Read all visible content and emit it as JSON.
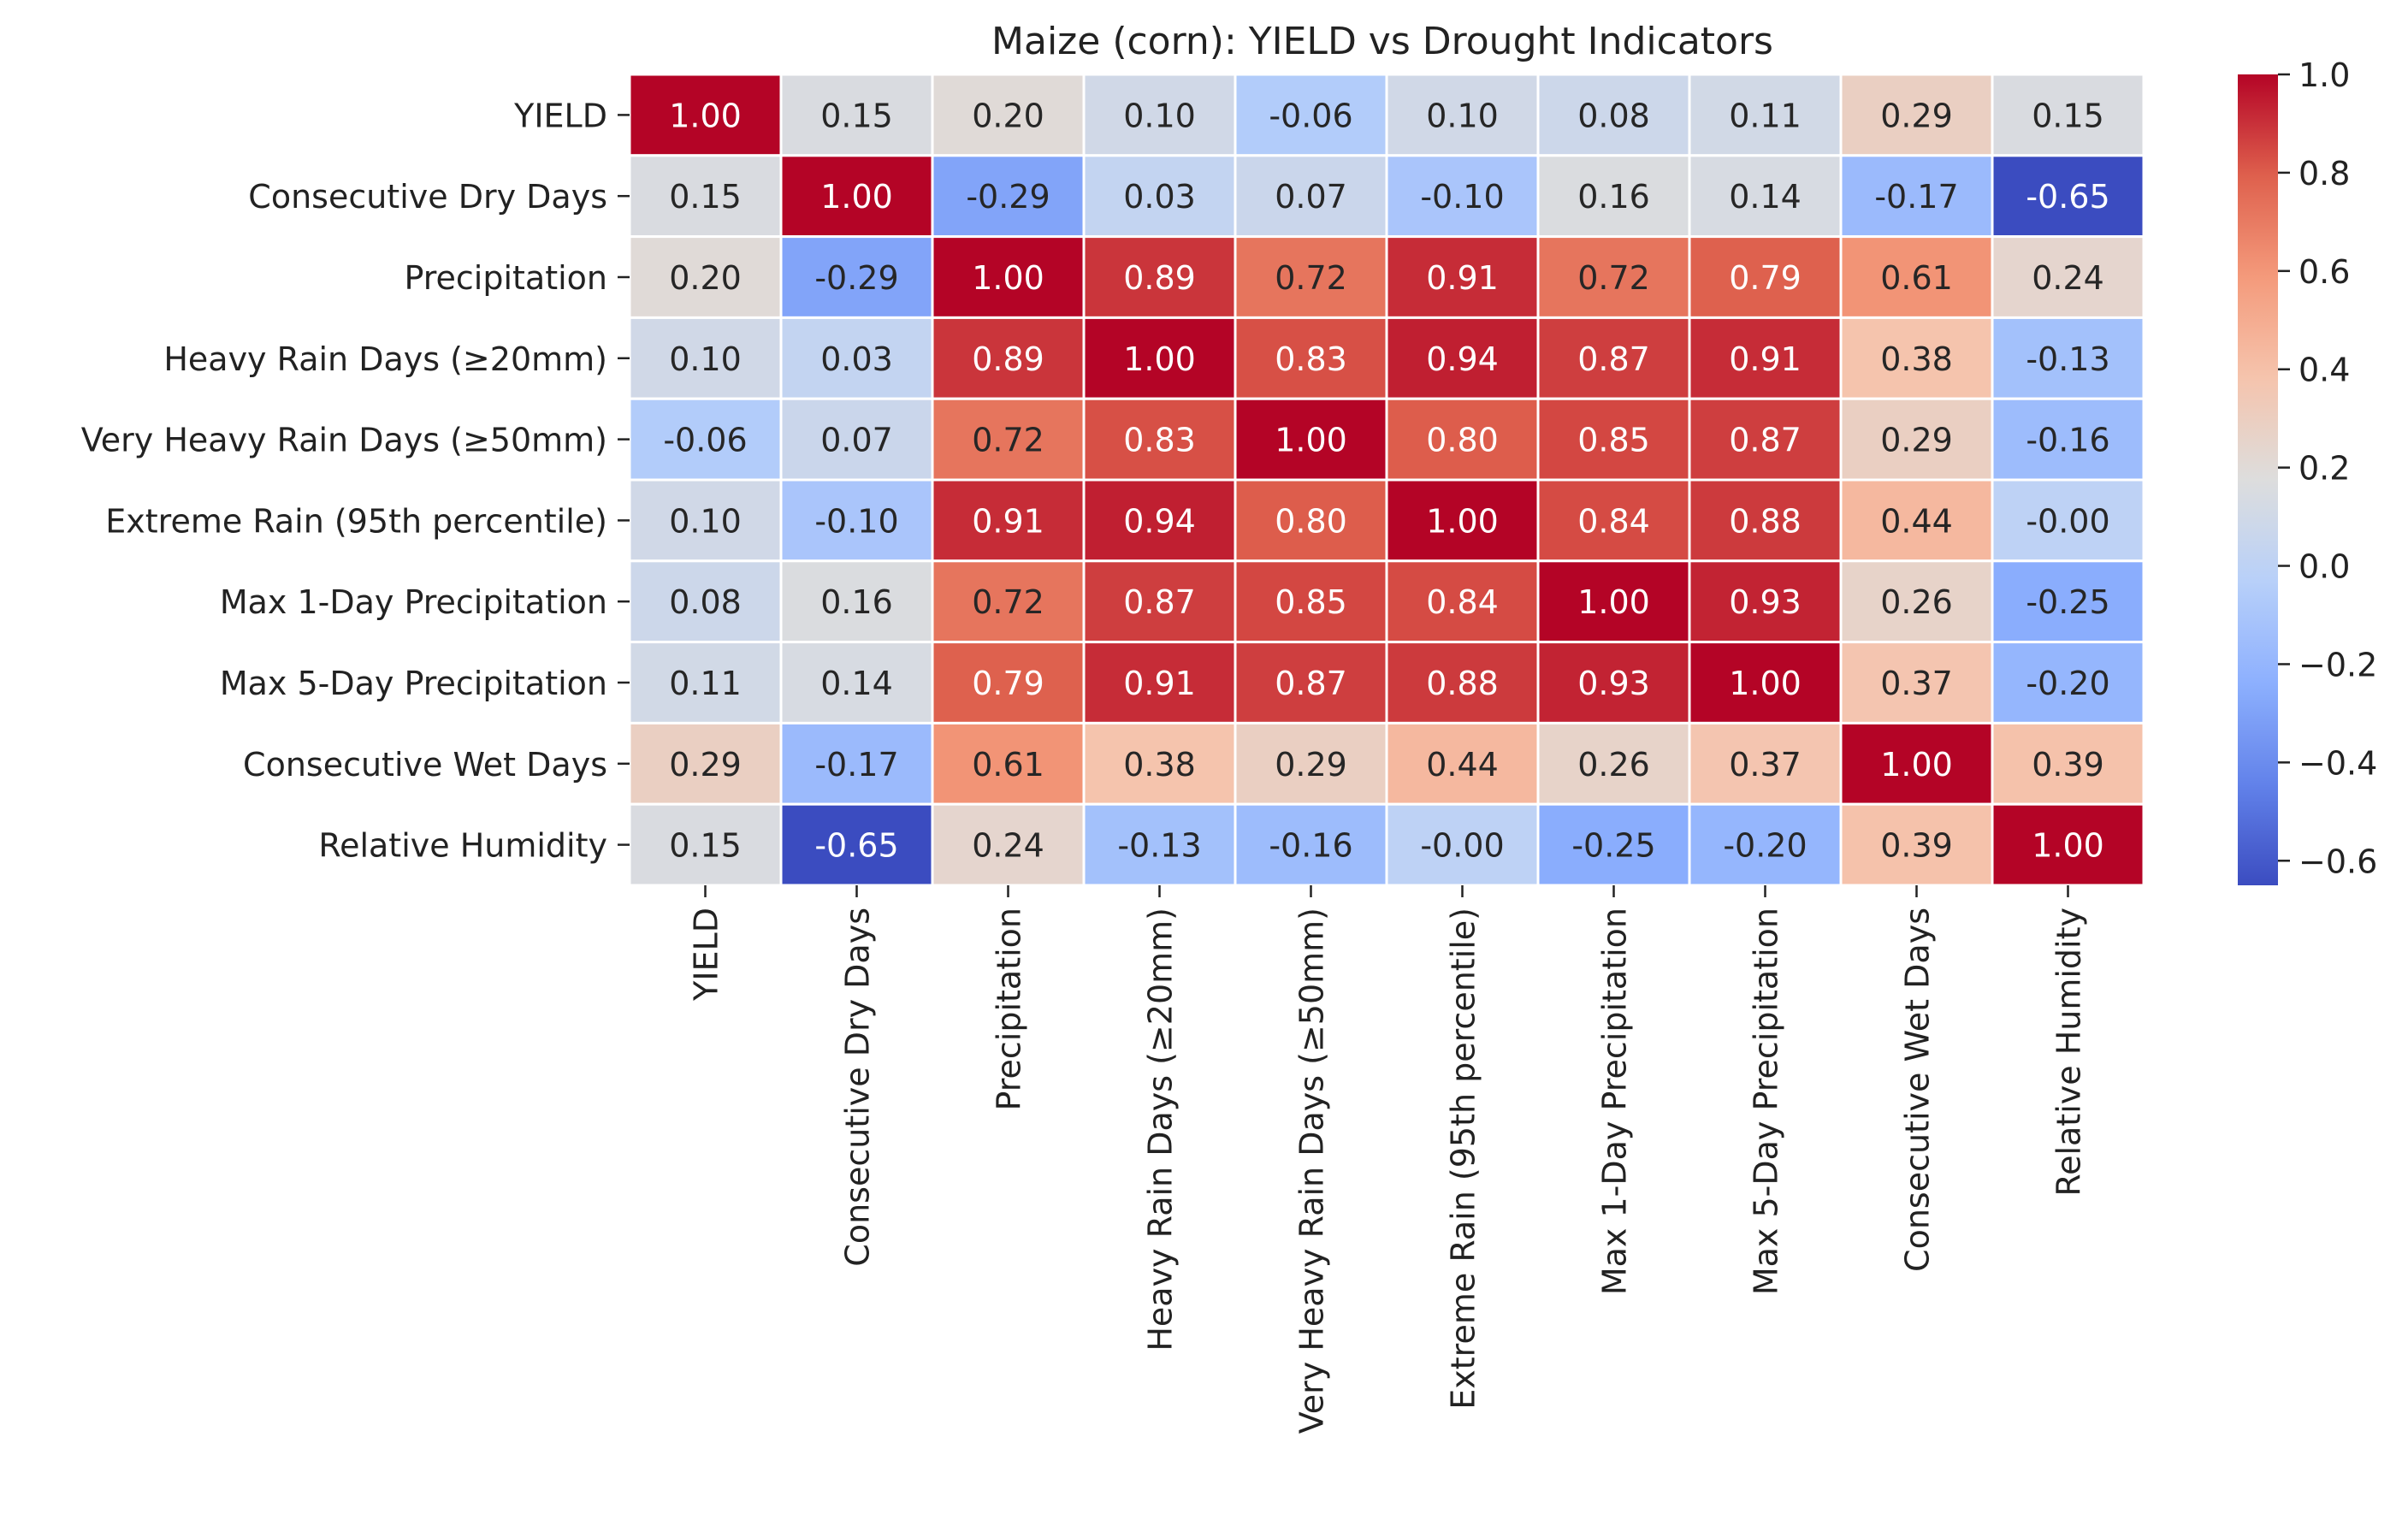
{
  "chart_data": {
    "type": "heatmap",
    "title": "Maize (corn): YIELD vs Drought Indicators",
    "xlabel": "",
    "ylabel": "",
    "labels": [
      "YIELD",
      "Consecutive Dry Days",
      "Precipitation",
      "Heavy Rain Days (≥20mm)",
      "Very Heavy Rain Days (≥50mm)",
      "Extreme Rain (95th percentile)",
      "Max 1-Day Precipitation",
      "Max 5-Day Precipitation",
      "Consecutive Wet Days",
      "Relative Humidity"
    ],
    "matrix": [
      [
        "1.00",
        "0.15",
        "0.20",
        "0.10",
        "-0.06",
        "0.10",
        "0.08",
        "0.11",
        "0.29",
        "0.15"
      ],
      [
        "0.15",
        "1.00",
        "-0.29",
        "0.03",
        "0.07",
        "-0.10",
        "0.16",
        "0.14",
        "-0.17",
        "-0.65"
      ],
      [
        "0.20",
        "-0.29",
        "1.00",
        "0.89",
        "0.72",
        "0.91",
        "0.72",
        "0.79",
        "0.61",
        "0.24"
      ],
      [
        "0.10",
        "0.03",
        "0.89",
        "1.00",
        "0.83",
        "0.94",
        "0.87",
        "0.91",
        "0.38",
        "-0.13"
      ],
      [
        "-0.06",
        "0.07",
        "0.72",
        "0.83",
        "1.00",
        "0.80",
        "0.85",
        "0.87",
        "0.29",
        "-0.16"
      ],
      [
        "0.10",
        "-0.10",
        "0.91",
        "0.94",
        "0.80",
        "1.00",
        "0.84",
        "0.88",
        "0.44",
        "-0.00"
      ],
      [
        "0.08",
        "0.16",
        "0.72",
        "0.87",
        "0.85",
        "0.84",
        "1.00",
        "0.93",
        "0.26",
        "-0.25"
      ],
      [
        "0.11",
        "0.14",
        "0.79",
        "0.91",
        "0.87",
        "0.88",
        "0.93",
        "1.00",
        "0.37",
        "-0.20"
      ],
      [
        "0.29",
        "-0.17",
        "0.61",
        "0.38",
        "0.29",
        "0.44",
        "0.26",
        "0.37",
        "1.00",
        "0.39"
      ],
      [
        "0.15",
        "-0.65",
        "0.24",
        "-0.13",
        "-0.16",
        "-0.00",
        "-0.25",
        "-0.20",
        "0.39",
        "1.00"
      ]
    ],
    "colormap": "coolwarm",
    "vmin": -0.65,
    "vmax": 1.0,
    "colorbar_ticks": [
      "1.0",
      "0.8",
      "0.6",
      "0.4",
      "0.2",
      "0.0",
      "−0.2",
      "−0.4",
      "−0.6"
    ],
    "colorbar_tick_values": [
      1.0,
      0.8,
      0.6,
      0.4,
      0.2,
      0.0,
      -0.2,
      -0.4,
      -0.6
    ],
    "grid": true,
    "colors": {
      "cell_border": "#ffffff",
      "text_dark": "#262626",
      "text_light": "#ffffff",
      "axis": "#222222"
    }
  }
}
